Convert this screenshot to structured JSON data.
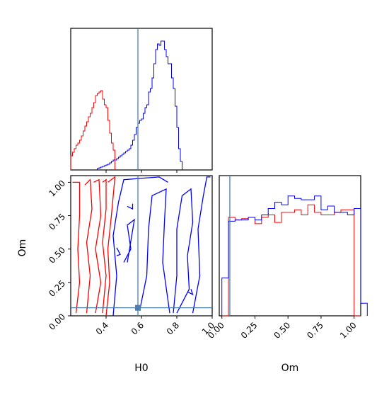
{
  "chart_data": {
    "type": "corner",
    "axis_labels": {
      "H0": "H0",
      "Om": "Om"
    },
    "truth": {
      "H0": 0.58,
      "Om": 0.06,
      "marker_color": "#4a7fb0",
      "line_color": "#3a75a8"
    },
    "colors": {
      "series_1": "#ff0000",
      "series_2": "#0000ff"
    },
    "panels": {
      "hist_H0": {
        "type": "step-histogram",
        "xlim": [
          0.2,
          1.0
        ],
        "bin_width": 0.01,
        "series": [
          {
            "color": "#ff0000",
            "x_start": 0.2,
            "counts": [
              20,
              25,
              30,
              35,
              38,
              42,
              48,
              55,
              62,
              68,
              75,
              80,
              88,
              95,
              105,
              108,
              110,
              112,
              100,
              92,
              88,
              70,
              52,
              38,
              28
            ]
          },
          {
            "color": "#0000ff",
            "x_start": 0.35,
            "counts": [
              2,
              3,
              4,
              5,
              6,
              7,
              8,
              10,
              12,
              14,
              14,
              16,
              18,
              20,
              22,
              24,
              26,
              28,
              30,
              35,
              42,
              50,
              60,
              66,
              70,
              72,
              80,
              88,
              92,
              110,
              115,
              130,
              150,
              170,
              178,
              176,
              182,
              182,
              170,
              160,
              150,
              150,
              130,
              115,
              90,
              60,
              30,
              12
            ]
          }
        ]
      },
      "contour_H0_Om": {
        "type": "contour",
        "xlim": [
          0.2,
          1.0
        ],
        "ylim": [
          0.0,
          1.05
        ],
        "x_ticks": [
          "0.4",
          "0.6",
          "0.8",
          "1.0"
        ],
        "x_tick_values": [
          0.4,
          0.6,
          0.8,
          1.0
        ],
        "y_ticks": [
          "0.00",
          "0.25",
          "0.50",
          "0.75",
          "1.00"
        ],
        "y_tick_values": [
          0.0,
          0.25,
          0.5,
          0.75,
          1.0
        ],
        "contours": [
          {
            "color": "#ff0000",
            "points": [
              [
                0.21,
                1.0
              ],
              [
                0.25,
                1.0
              ],
              [
                0.25,
                0.75
              ],
              [
                0.24,
                0.5
              ],
              [
                0.25,
                0.25
              ],
              [
                0.23,
                0.02
              ]
            ]
          },
          {
            "color": "#ff0000",
            "points": [
              [
                0.28,
                0.98
              ],
              [
                0.31,
                1.02
              ],
              [
                0.32,
                0.8
              ],
              [
                0.29,
                0.55
              ],
              [
                0.31,
                0.3
              ],
              [
                0.29,
                0.02
              ]
            ]
          },
          {
            "color": "#ff0000",
            "points": [
              [
                0.33,
                1.0
              ],
              [
                0.36,
                1.02
              ],
              [
                0.37,
                0.75
              ],
              [
                0.34,
                0.5
              ],
              [
                0.37,
                0.25
              ],
              [
                0.34,
                0.02
              ]
            ]
          },
          {
            "color": "#ff0000",
            "points": [
              [
                0.38,
                1.0
              ],
              [
                0.4,
                1.02
              ],
              [
                0.4,
                0.8
              ],
              [
                0.38,
                0.55
              ],
              [
                0.4,
                0.3
              ],
              [
                0.38,
                0.02
              ]
            ]
          },
          {
            "color": "#ff0000",
            "points": [
              [
                0.41,
                1.0
              ],
              [
                0.45,
                1.04
              ],
              [
                0.43,
                0.75
              ],
              [
                0.41,
                0.5
              ],
              [
                0.42,
                0.25
              ],
              [
                0.4,
                0.0
              ]
            ]
          },
          {
            "color": "#0000ff",
            "points": [
              [
                0.44,
                0.0
              ],
              [
                0.46,
                0.3
              ],
              [
                0.44,
                0.6
              ],
              [
                0.47,
                0.85
              ],
              [
                0.5,
                1.02
              ],
              [
                0.7,
                1.04
              ],
              [
                0.75,
                1.0
              ]
            ]
          },
          {
            "color": "#0000ff",
            "points": [
              [
                0.5,
                0.4
              ],
              [
                0.54,
                0.5
              ],
              [
                0.52,
                0.68
              ],
              [
                0.56,
                0.72
              ],
              [
                0.52,
                0.4
              ]
            ]
          },
          {
            "color": "#0000ff",
            "points": [
              [
                0.59,
                0.04
              ],
              [
                0.63,
                0.3
              ],
              [
                0.64,
                0.65
              ],
              [
                0.66,
                0.9
              ],
              [
                0.74,
                0.95
              ],
              [
                0.73,
                0.7
              ],
              [
                0.72,
                0.4
              ],
              [
                0.76,
                0.02
              ]
            ]
          },
          {
            "color": "#0000ff",
            "points": [
              [
                0.78,
                0.02
              ],
              [
                0.8,
                0.3
              ],
              [
                0.8,
                0.65
              ],
              [
                0.83,
                0.9
              ],
              [
                0.88,
                0.95
              ],
              [
                0.89,
                0.7
              ],
              [
                0.86,
                0.45
              ],
              [
                0.87,
                0.2
              ],
              [
                0.8,
                0.02
              ]
            ]
          },
          {
            "color": "#0000ff",
            "points": [
              [
                0.89,
                0.02
              ],
              [
                0.93,
                0.3
              ],
              [
                0.92,
                0.65
              ],
              [
                0.95,
                0.9
              ],
              [
                0.97,
                1.04
              ],
              [
                0.99,
                1.04
              ]
            ]
          },
          {
            "color": "#0000ff",
            "points": [
              [
                0.52,
                0.82
              ],
              [
                0.55,
                0.8
              ],
              [
                0.55,
                0.84
              ]
            ]
          },
          {
            "color": "#0000ff",
            "points": [
              [
                0.46,
                0.51
              ],
              [
                0.48,
                0.46
              ],
              [
                0.46,
                0.45
              ]
            ]
          },
          {
            "color": "#0000ff",
            "points": [
              [
                0.86,
                0.18
              ],
              [
                0.89,
                0.16
              ],
              [
                0.88,
                0.2
              ]
            ]
          }
        ]
      },
      "hist_Om": {
        "type": "step-histogram",
        "xlim": [
          -0.02,
          1.05
        ],
        "x_ticks": [
          "0.00",
          "0.25",
          "0.50",
          "0.75",
          "1.00"
        ],
        "x_tick_values": [
          0.0,
          0.25,
          0.5,
          0.75,
          1.0
        ],
        "bin_width": 0.05,
        "series": [
          {
            "color": "#ff0000",
            "x_start": 0.0,
            "counts": [
              0,
              78,
              76,
              77,
              78,
              73,
              78,
              80,
              74,
              82,
              82,
              84,
              80,
              88,
              82,
              80,
              80,
              82,
              84,
              84,
              0
            ]
          },
          {
            "color": "#0000ff",
            "x_start": 0.0,
            "counts": [
              30,
              75,
              76,
              76,
              78,
              76,
              80,
              85,
              90,
              88,
              95,
              93,
              92,
              92,
              95,
              84,
              87,
              82,
              82,
              80,
              85,
              10
            ]
          }
        ]
      }
    }
  }
}
